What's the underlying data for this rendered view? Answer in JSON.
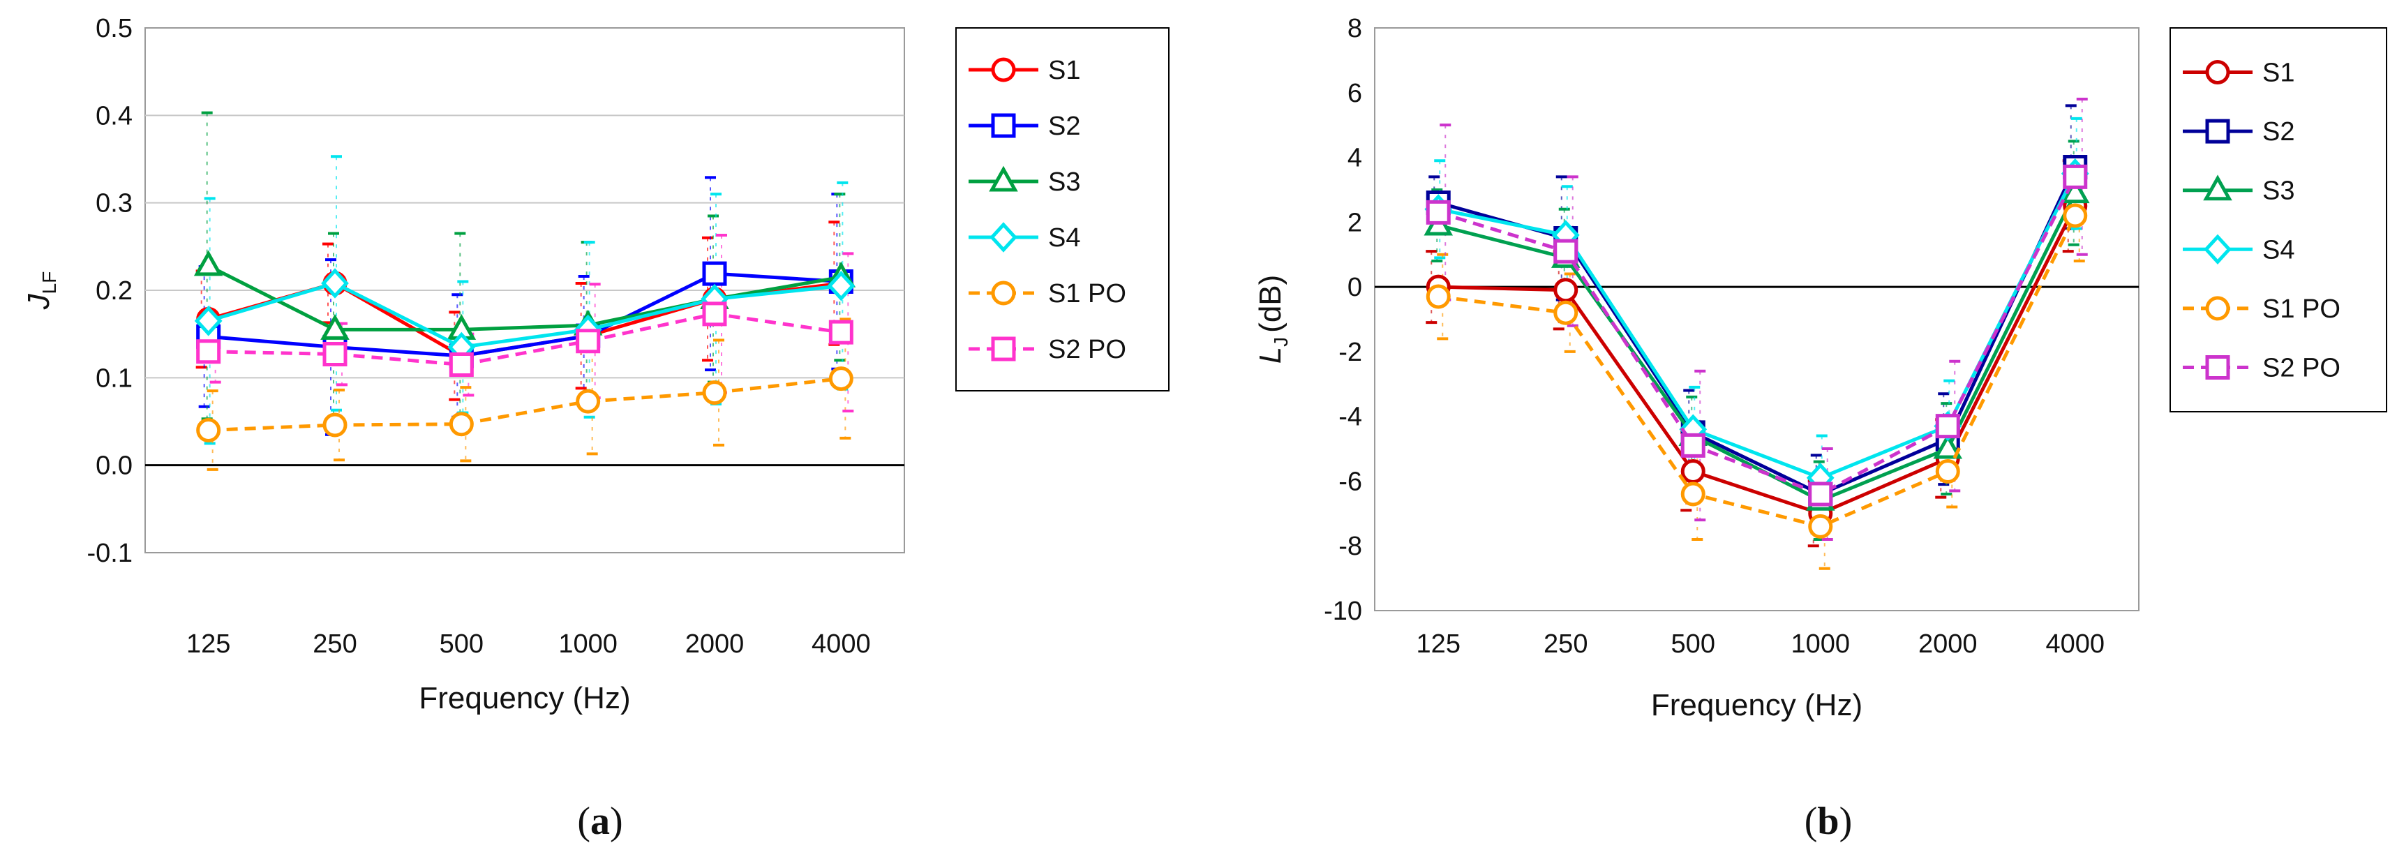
{
  "chart_data": [
    {
      "type": "line",
      "panel_caption": "a",
      "title": "",
      "xlabel": "Frequency (Hz)",
      "ylabel_main": "J",
      "ylabel_sub": "LF",
      "categories": [
        "125",
        "250",
        "500",
        "1000",
        "2000",
        "4000"
      ],
      "ylim": [
        -0.1,
        0.5
      ],
      "yticks": [
        "-0.1",
        "0.0",
        "0.1",
        "0.2",
        "0.3",
        "0.4",
        "0.5"
      ],
      "grid": true,
      "legend_position": "right",
      "series": [
        {
          "name": "S1",
          "color": "#ff0000",
          "marker": "circle",
          "dash": false,
          "values": [
            0.167,
            0.208,
            0.125,
            0.148,
            0.19,
            0.208
          ],
          "err": [
            0.055,
            0.045,
            0.05,
            0.06,
            0.07,
            0.07
          ]
        },
        {
          "name": "S2",
          "color": "#0000ff",
          "marker": "square",
          "dash": false,
          "values": [
            0.147,
            0.135,
            0.125,
            0.148,
            0.219,
            0.21
          ],
          "err": [
            0.08,
            0.1,
            0.07,
            0.068,
            0.11,
            0.1
          ]
        },
        {
          "name": "S3",
          "color": "#00a040",
          "marker": "triangle",
          "dash": false,
          "values": [
            0.228,
            0.155,
            0.155,
            0.16,
            0.19,
            0.215
          ],
          "err": [
            0.175,
            0.11,
            0.11,
            0.095,
            0.095,
            0.095
          ]
        },
        {
          "name": "S4",
          "color": "#00e5ee",
          "marker": "diamond",
          "dash": false,
          "values": [
            0.165,
            0.208,
            0.135,
            0.155,
            0.19,
            0.205
          ],
          "err": [
            0.14,
            0.145,
            0.075,
            0.1,
            0.12,
            0.118
          ]
        },
        {
          "name": "S1 PO",
          "color": "#ff9900",
          "marker": "circle",
          "dash": true,
          "values": [
            0.04,
            0.046,
            0.047,
            0.073,
            0.083,
            0.099
          ],
          "err": [
            0.045,
            0.04,
            0.042,
            0.06,
            0.06,
            0.068
          ]
        },
        {
          "name": "S2 PO",
          "color": "#ff33cc",
          "marker": "square",
          "dash": true,
          "values": [
            0.13,
            0.127,
            0.115,
            0.142,
            0.173,
            0.152
          ],
          "err": [
            0.035,
            0.035,
            0.035,
            0.065,
            0.09,
            0.09
          ]
        }
      ]
    },
    {
      "type": "line",
      "panel_caption": "b",
      "title": "",
      "xlabel": "Frequency (Hz)",
      "ylabel_main": "L",
      "ylabel_sub": "J",
      "ylabel_unit": "(dB)",
      "categories": [
        "125",
        "250",
        "500",
        "1000",
        "2000",
        "4000"
      ],
      "ylim": [
        -10,
        8
      ],
      "yticks": [
        "-10",
        "-8",
        "-6",
        "-4",
        "-2",
        "0",
        "2",
        "4",
        "6",
        "8"
      ],
      "grid": false,
      "legend_position": "right",
      "series": [
        {
          "name": "S1",
          "color": "#cc0000",
          "marker": "circle",
          "dash": false,
          "values": [
            0.0,
            -0.1,
            -5.7,
            -7.0,
            -5.3,
            2.5
          ],
          "err": [
            1.1,
            1.2,
            1.2,
            1.0,
            1.2,
            1.4
          ]
        },
        {
          "name": "S2",
          "color": "#000099",
          "marker": "square",
          "dash": false,
          "values": [
            2.6,
            1.5,
            -4.5,
            -6.4,
            -4.7,
            3.7
          ],
          "err": [
            0.8,
            1.9,
            1.3,
            1.2,
            1.4,
            1.9
          ]
        },
        {
          "name": "S3",
          "color": "#00a050",
          "marker": "triangle",
          "dash": false,
          "values": [
            1.9,
            0.9,
            -4.6,
            -6.6,
            -5.0,
            2.9
          ],
          "err": [
            1.1,
            1.5,
            1.2,
            1.2,
            1.4,
            1.6
          ]
        },
        {
          "name": "S4",
          "color": "#00e5ee",
          "marker": "diamond",
          "dash": false,
          "values": [
            2.4,
            1.6,
            -4.4,
            -5.9,
            -4.3,
            3.5
          ],
          "err": [
            1.5,
            1.5,
            1.3,
            1.3,
            1.4,
            1.7
          ]
        },
        {
          "name": "S1 PO",
          "color": "#ff9900",
          "marker": "circle",
          "dash": true,
          "values": [
            -0.3,
            -0.8,
            -6.4,
            -7.4,
            -5.7,
            2.2
          ],
          "err": [
            1.3,
            1.2,
            1.4,
            1.3,
            1.1,
            1.4
          ]
        },
        {
          "name": "S2 PO",
          "color": "#cc33cc",
          "marker": "square",
          "dash": true,
          "values": [
            2.3,
            1.1,
            -4.9,
            -6.4,
            -4.3,
            3.4
          ],
          "err": [
            2.7,
            2.3,
            2.3,
            1.4,
            2.0,
            2.4
          ]
        }
      ]
    }
  ]
}
